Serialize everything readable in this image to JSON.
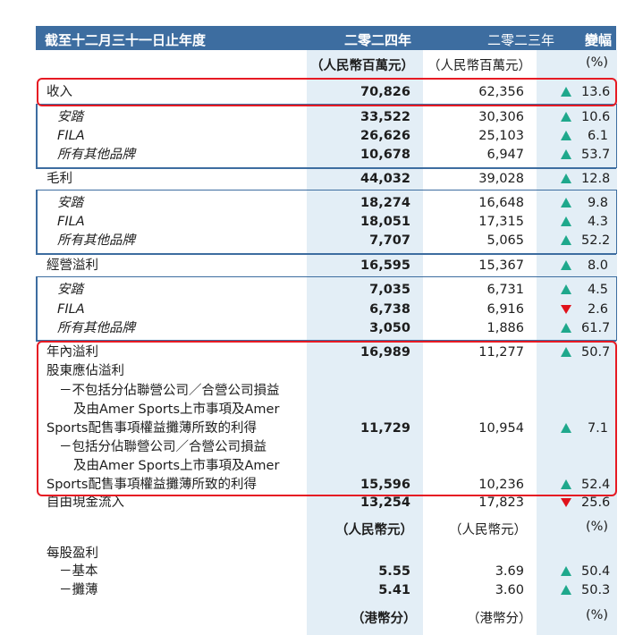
{
  "header": {
    "label": "截至十二月三十一日止年度",
    "col_2024": "二零二四年",
    "col_2023": "二零二三年",
    "col_change": "變幅"
  },
  "units1": {
    "u2024": "（人民幣百萬元）",
    "u2023": "（人民幣百萬元）",
    "uchg": "(%)"
  },
  "rows": {
    "revenue": {
      "label": "收入",
      "v2024": "70,826",
      "v2023": "62,356",
      "chg": "13.6",
      "dir": "up"
    },
    "rev_anta": {
      "label": "安踏",
      "v2024": "33,522",
      "v2023": "30,306",
      "chg": "10.6",
      "dir": "up"
    },
    "rev_fila": {
      "label": "FILA",
      "v2024": "26,626",
      "v2023": "25,103",
      "chg": "6.1",
      "dir": "up"
    },
    "rev_other": {
      "label": "所有其他品牌",
      "v2024": "10,678",
      "v2023": "6,947",
      "chg": "53.7",
      "dir": "up"
    },
    "gp": {
      "label": "毛利",
      "v2024": "44,032",
      "v2023": "39,028",
      "chg": "12.8",
      "dir": "up"
    },
    "gp_anta": {
      "label": "安踏",
      "v2024": "18,274",
      "v2023": "16,648",
      "chg": "9.8",
      "dir": "up"
    },
    "gp_fila": {
      "label": "FILA",
      "v2024": "18,051",
      "v2023": "17,315",
      "chg": "4.3",
      "dir": "up"
    },
    "gp_other": {
      "label": "所有其他品牌",
      "v2024": "7,707",
      "v2023": "5,065",
      "chg": "52.2",
      "dir": "up"
    },
    "op": {
      "label": "經營溢利",
      "v2024": "16,595",
      "v2023": "15,367",
      "chg": "8.0",
      "dir": "up"
    },
    "op_anta": {
      "label": "安踏",
      "v2024": "7,035",
      "v2023": "6,731",
      "chg": "4.5",
      "dir": "up"
    },
    "op_fila": {
      "label": "FILA",
      "v2024": "6,738",
      "v2023": "6,916",
      "chg": "2.6",
      "dir": "down"
    },
    "op_other": {
      "label": "所有其他品牌",
      "v2024": "3,050",
      "v2023": "1,886",
      "chg": "61.7",
      "dir": "up"
    },
    "np": {
      "label": "年內溢利",
      "v2024": "16,989",
      "v2023": "11,277",
      "chg": "50.7",
      "dir": "up"
    },
    "attr": {
      "label": "股東應佔溢利"
    },
    "excl": {
      "l1": "－不包括分佔聯營公司／合營公司損益",
      "l2": "及由Amer Sports上市事項及Amer",
      "l3": "Sports配售事項權益攤薄所致的利得",
      "v2024": "11,729",
      "v2023": "10,954",
      "chg": "7.1",
      "dir": "up"
    },
    "incl": {
      "l1": "－包括分佔聯營公司／合營公司損益",
      "l2": "及由Amer Sports上市事項及Amer",
      "l3": "Sports配售事項權益攤薄所致的利得",
      "v2024": "15,596",
      "v2023": "10,236",
      "chg": "52.4",
      "dir": "up"
    },
    "fcf": {
      "label": "自由現金流入",
      "v2024": "13,254",
      "v2023": "17,823",
      "chg": "25.6",
      "dir": "down"
    }
  },
  "units2": {
    "u2024": "（人民幣元）",
    "u2023": "（人民幣元）",
    "uchg": "(%)"
  },
  "eps": {
    "label": "每股盈利",
    "basic": {
      "label": "－基本",
      "v2024": "5.55",
      "v2023": "3.69",
      "chg": "50.4",
      "dir": "up"
    },
    "diluted": {
      "label": "－攤薄",
      "v2024": "5.41",
      "v2023": "3.60",
      "chg": "50.3",
      "dir": "up"
    }
  },
  "units3": {
    "u2024": "（港幣分）",
    "u2023": "（港幣分）",
    "uchg": "(%)"
  },
  "colors": {
    "header_bg": "#3d6da0",
    "highlight": "#e3eef6",
    "up": "#1fa88c",
    "down": "#e0121b",
    "red_box": "#e61a23"
  }
}
